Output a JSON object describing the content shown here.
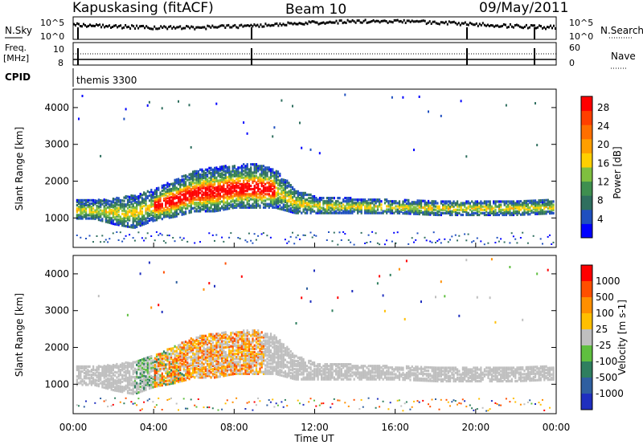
{
  "header": {
    "station": "Kapuskasing (fitACF)",
    "beam": "Beam 10",
    "date": "09/May/2011"
  },
  "summary_panels": {
    "nsky_label": "N.Sky",
    "nsearch_label": "N.Search",
    "nsky_ticks": [
      "10^5",
      "10^0"
    ],
    "nsearch_ticks": [
      "10^5",
      "10^0"
    ],
    "freq_label_line1": "Freq.",
    "freq_label_line2": "[MHz]",
    "freq_ticks": [
      "10",
      "8"
    ],
    "nave_label": "Nave",
    "nave_ticks": [
      "60",
      "0"
    ],
    "cpid_label": "CPID",
    "cpid_value": "themis 3300"
  },
  "chart_data": [
    {
      "type": "heatmap",
      "name": "power",
      "xlabel": "Time UT",
      "ylabel": "Slant Range [km]",
      "x_unit": "hours UT",
      "xlim": [
        0,
        24
      ],
      "x_ticks": [
        "00:00",
        "04:00",
        "08:00",
        "12:00",
        "16:00",
        "20:00",
        "00:00"
      ],
      "ylim": [
        200,
        4500
      ],
      "y_ticks": [
        1000,
        2000,
        3000,
        4000
      ],
      "colorbar": {
        "label": "Power [dB]",
        "ticks": [
          "4",
          "8",
          "12",
          "16",
          "20",
          "24",
          "28"
        ],
        "range": [
          0,
          30
        ],
        "colors": [
          "#0000ff",
          "#1f4fbf",
          "#2f6f5f",
          "#3f8f4f",
          "#7fbf3f",
          "#ffcf00",
          "#ff9f00",
          "#ff6f00",
          "#ff3f00",
          "#ff0000"
        ]
      }
    },
    {
      "type": "heatmap",
      "name": "velocity",
      "xlabel": "Time UT",
      "ylabel": "Slant Range [km]",
      "x_unit": "hours UT",
      "xlim": [
        0,
        24
      ],
      "x_ticks": [
        "00:00",
        "04:00",
        "08:00",
        "12:00",
        "16:00",
        "20:00",
        "00:00"
      ],
      "ylim": [
        200,
        4500
      ],
      "y_ticks": [
        1000,
        2000,
        3000,
        4000
      ],
      "colorbar": {
        "label": "Velocity [m s-1]",
        "ticks": [
          "1000",
          "500",
          "100",
          "25",
          "-25",
          "-100",
          "-500",
          "-1000"
        ],
        "colors": [
          "#1f2fbf",
          "#2f5fa0",
          "#2f7f5f",
          "#5fbf3f",
          "#bfbfbf",
          "#ffbf00",
          "#ff8f00",
          "#ff4f00",
          "#ff0000"
        ]
      }
    }
  ],
  "echo_band": {
    "hours": [
      0.0,
      1.0,
      2.0,
      3.0,
      4.0,
      5.0,
      6.0,
      7.0,
      8.0,
      9.0,
      10.0,
      11.0,
      12.0,
      14.0,
      16.0,
      18.0,
      20.0,
      22.0,
      24.0
    ],
    "bottom_km": [
      950,
      950,
      800,
      700,
      900,
      1000,
      1150,
      1150,
      1250,
      1250,
      1250,
      1100,
      1100,
      1100,
      1100,
      1050,
      1050,
      1050,
      1100
    ],
    "top_km": [
      1450,
      1450,
      1500,
      1600,
      1750,
      2000,
      2250,
      2350,
      2400,
      2450,
      2300,
      1750,
      1550,
      1500,
      1450,
      1450,
      1450,
      1450,
      1450
    ]
  }
}
